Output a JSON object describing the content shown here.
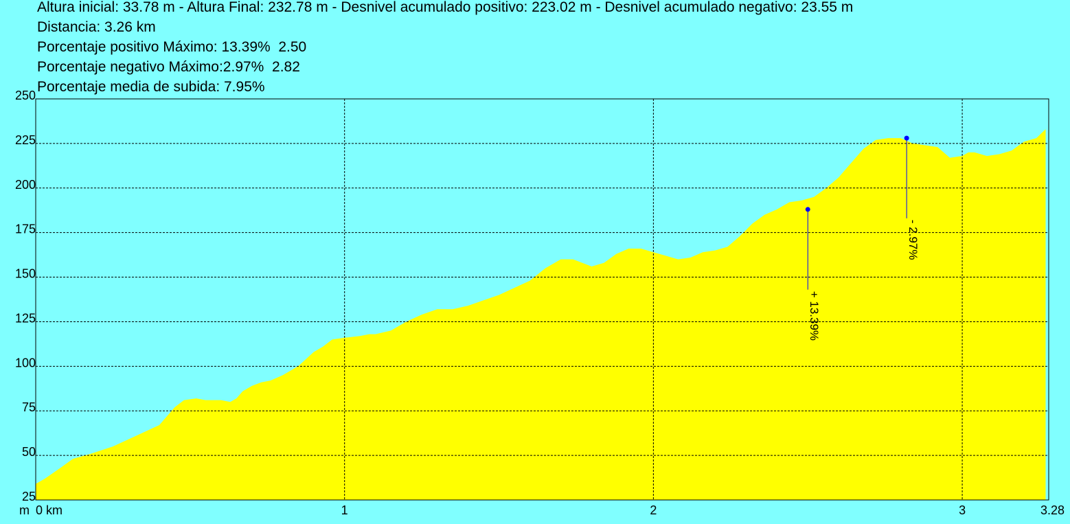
{
  "header": {
    "line1": "Altura inicial: 33.78 m - Altura Final: 232.78 m - Desnivel acumulado positivo: 223.02 m - Desnivel acumulado negativo: 23.55 m",
    "line2": "Distancia: 3.26 km",
    "line3": "Porcentaje positivo Máximo: 13.39%  2.50",
    "line4": "Porcentaje negativo Máximo:2.97%  2.82",
    "line5": "Porcentaje media de subida: 7.95%"
  },
  "colors": {
    "background": "#80FFFF",
    "fill": "#FFFF00",
    "grid": "#000000",
    "marker": "#0000FF"
  },
  "chart_data": {
    "type": "area",
    "xlim": [
      0,
      3.28
    ],
    "ylim": [
      25,
      250
    ],
    "x_unit_label": "km",
    "y_unit_label": "m",
    "x_ticks": [
      {
        "value": 0,
        "label": "0 km"
      },
      {
        "value": 1,
        "label": "1"
      },
      {
        "value": 2,
        "label": "2"
      },
      {
        "value": 3,
        "label": "3"
      },
      {
        "value": 3.28,
        "label": "3.28"
      }
    ],
    "y_ticks": [
      25,
      50,
      75,
      100,
      125,
      150,
      175,
      200,
      225,
      250
    ],
    "grid": true,
    "x": [
      0,
      0.03,
      0.08,
      0.12,
      0.18,
      0.25,
      0.3,
      0.35,
      0.4,
      0.45,
      0.48,
      0.52,
      0.55,
      0.6,
      0.63,
      0.65,
      0.67,
      0.7,
      0.73,
      0.76,
      0.8,
      0.85,
      0.9,
      0.93,
      0.96,
      1.0,
      1.05,
      1.08,
      1.1,
      1.15,
      1.2,
      1.25,
      1.3,
      1.35,
      1.4,
      1.45,
      1.5,
      1.55,
      1.6,
      1.65,
      1.7,
      1.74,
      1.8,
      1.84,
      1.88,
      1.92,
      1.96,
      2.0,
      2.04,
      2.08,
      2.12,
      2.16,
      2.2,
      2.24,
      2.28,
      2.32,
      2.36,
      2.4,
      2.44,
      2.48,
      2.52,
      2.56,
      2.6,
      2.64,
      2.68,
      2.72,
      2.76,
      2.8,
      2.84,
      2.88,
      2.92,
      2.96,
      3.0,
      3.02,
      3.04,
      3.08,
      3.12,
      3.16,
      3.2,
      3.24,
      3.27
    ],
    "y": [
      34,
      37,
      43,
      48,
      51,
      55,
      59,
      63,
      67,
      77,
      81,
      82,
      81,
      81,
      80,
      82,
      86,
      89,
      91,
      92,
      95,
      100,
      108,
      111,
      115,
      116,
      117,
      118,
      118,
      120,
      125,
      129,
      132,
      132,
      134,
      137,
      140,
      144,
      148,
      155,
      160,
      160,
      156,
      158,
      163,
      166,
      166,
      164,
      162,
      160,
      161,
      164,
      165,
      167,
      173,
      180,
      185,
      188,
      192,
      193,
      195,
      200,
      206,
      214,
      222,
      227,
      228,
      228,
      225,
      224,
      223,
      217,
      218,
      220,
      220,
      218,
      219,
      221,
      226,
      228,
      233
    ],
    "markers": [
      {
        "x": 2.5,
        "y": 188,
        "label": "+ 13.39%",
        "label_y": 143
      },
      {
        "x": 2.82,
        "y": 228,
        "label": "- 2.97%",
        "label_y": 183
      }
    ]
  }
}
